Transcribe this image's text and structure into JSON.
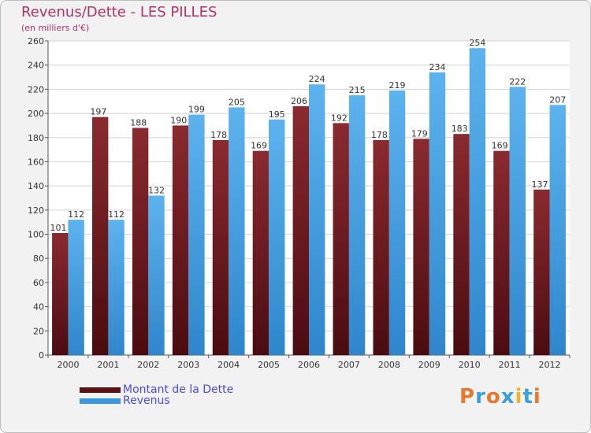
{
  "chart_data": {
    "type": "bar",
    "title": "Revenus/Dette - LES PILLES",
    "subtitle": "(en milliers d'€)",
    "categories": [
      "2000",
      "2001",
      "2002",
      "2003",
      "2004",
      "2005",
      "2006",
      "2007",
      "2008",
      "2009",
      "2010",
      "2011",
      "2012"
    ],
    "series": [
      {
        "name": "Montant de la Dette",
        "color": "#7a1f24",
        "values": [
          101,
          197,
          188,
          190,
          178,
          169,
          206,
          192,
          178,
          179,
          183,
          169,
          137
        ]
      },
      {
        "name": "Revenus",
        "color": "#4aa6e6",
        "values": [
          112,
          112,
          132,
          199,
          205,
          195,
          224,
          215,
          219,
          234,
          254,
          222,
          207
        ]
      }
    ],
    "ylim": [
      0,
      260
    ],
    "yticks": [
      0,
      20,
      40,
      60,
      80,
      100,
      120,
      140,
      160,
      180,
      200,
      220,
      240,
      260
    ],
    "grid": true,
    "legend_position": "bottom-left"
  },
  "logo": {
    "text": "Proxiti",
    "colors": [
      "#e8792b",
      "#3aa0d8",
      "#e8792b",
      "#3aa0d8",
      "#f0b428",
      "#3aa0d8",
      "#e8792b"
    ]
  }
}
